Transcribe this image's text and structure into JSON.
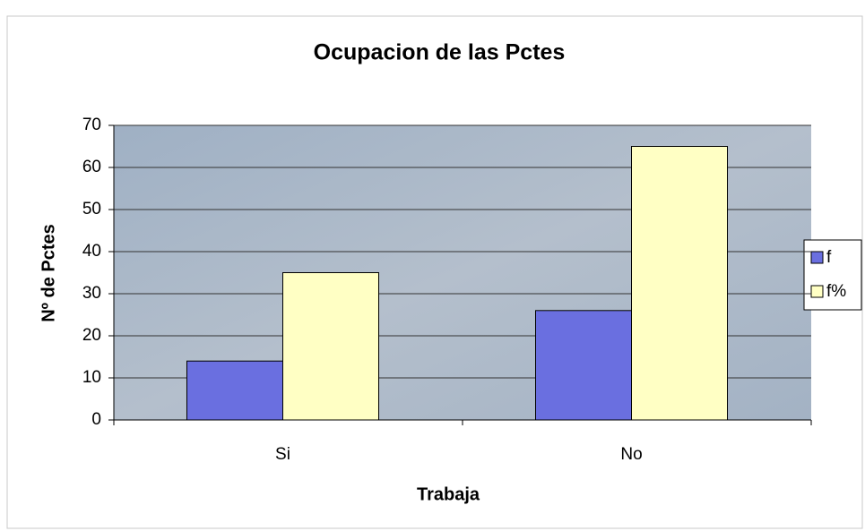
{
  "chart_data": {
    "type": "bar",
    "title": "Ocupacion de las Pctes",
    "x_label": "Trabaja",
    "y_label": "Nº de Pctes",
    "categories": [
      "Si",
      "No"
    ],
    "series": [
      {
        "name": "f",
        "color": "#6a6fe0",
        "values": [
          14,
          26
        ]
      },
      {
        "name": "f%",
        "color": "#ffffc4",
        "values": [
          35,
          65
        ]
      }
    ],
    "ylim": [
      0,
      70
    ],
    "yticks": [
      0,
      10,
      20,
      30,
      40,
      50,
      60,
      70
    ],
    "grid": true,
    "legend": "right"
  }
}
